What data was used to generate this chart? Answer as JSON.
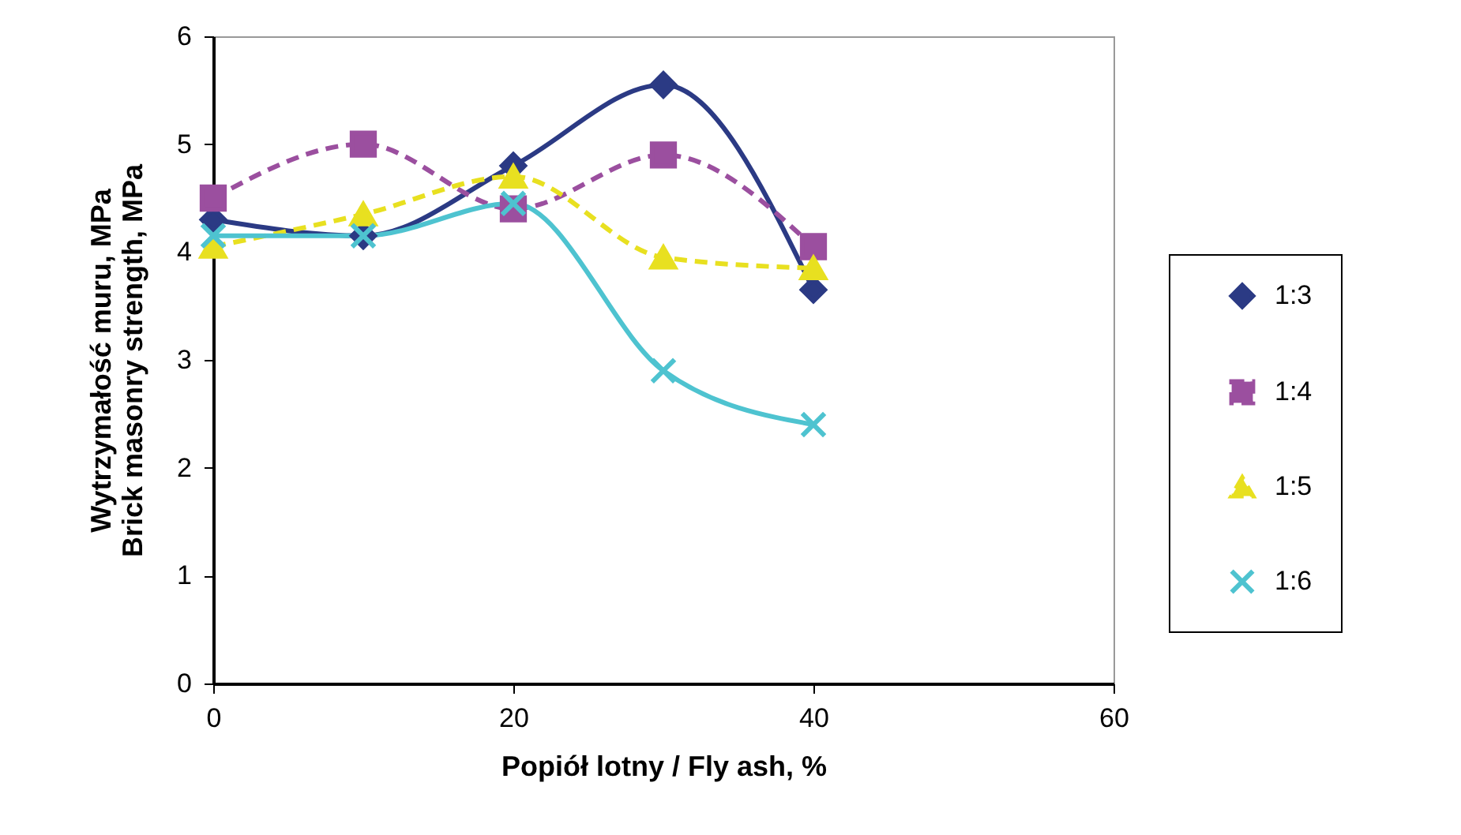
{
  "chart_data": {
    "type": "line",
    "xlabel": "Popiół lotny / Fly ash, %",
    "ylabel": "Wytrzymałość muru, MPa\nBrick masonry strength, MPa",
    "x": [
      0,
      10,
      20,
      30,
      40
    ],
    "xlim": [
      0,
      60
    ],
    "xticks": [
      0,
      20,
      40,
      60
    ],
    "ylim": [
      0,
      6
    ],
    "yticks": [
      0,
      1,
      2,
      3,
      4,
      5,
      6
    ],
    "grid": false,
    "legend": "right",
    "series": [
      {
        "name": "1:3",
        "color": "#2b3a84",
        "marker": "diamond",
        "line_style": "solid",
        "values": [
          4.3,
          4.15,
          4.8,
          5.55,
          3.65
        ]
      },
      {
        "name": "1:4",
        "color": "#9b4f9f",
        "marker": "square",
        "line_style": "dashed",
        "values": [
          4.5,
          5.0,
          4.4,
          4.9,
          4.05
        ]
      },
      {
        "name": "1:5",
        "color": "#e8e020",
        "marker": "triangle",
        "line_style": "dashed",
        "values": [
          4.05,
          4.35,
          4.7,
          3.95,
          3.85
        ]
      },
      {
        "name": "1:6",
        "color": "#4ec3d0",
        "marker": "cross",
        "line_style": "solid",
        "values": [
          4.15,
          4.15,
          4.45,
          2.9,
          2.4
        ]
      }
    ]
  }
}
